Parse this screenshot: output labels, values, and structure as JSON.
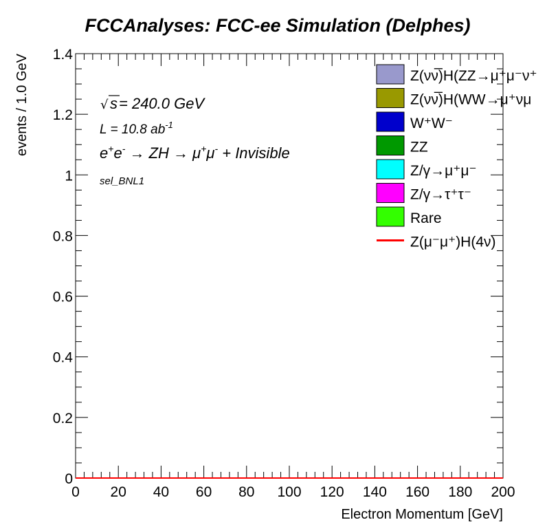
{
  "chart_data": {
    "type": "bar",
    "title": "FCCAnalyses: FCC-ee Simulation (Delphes)",
    "xlabel": "Electron Momentum [GeV]",
    "ylabel": "events / 1.0 GeV",
    "xlim": [
      0,
      200
    ],
    "ylim": [
      0,
      1.4
    ],
    "xticks": [
      "0",
      "20",
      "40",
      "60",
      "80",
      "100",
      "120",
      "140",
      "160",
      "180",
      "200"
    ],
    "yticks": [
      "0",
      "0.2",
      "0.4",
      "0.6",
      "0.8",
      "1",
      "1.2",
      "1.4"
    ],
    "grid": false,
    "legend_position": "top-right",
    "annotations": {
      "energy_prefix": "s",
      "energy_value": " = 240.0 GeV",
      "lumi_text": "L = 10.8 ab",
      "lumi_exp": "-1",
      "process_e1": "e",
      "process_e1_sup": "+",
      "process_e2": "e",
      "process_e2_sup": "-",
      "process_arrow1": " → ZH → ",
      "process_mu1": "μ",
      "process_mu1_sup": "+",
      "process_mu2": "μ",
      "process_mu2_sup": "-",
      "process_tail": " + Invisible",
      "selection": "sel_BNL1"
    },
    "series": [
      {
        "name": "Z(νν̅)H(ZZ→μ⁺μ⁻ν⁺ν⁻)",
        "label": "Z(νν̅)H(ZZ→μ⁺μ⁻ν⁺",
        "style": "fill",
        "color": "#9999cc",
        "values": [
          0
        ]
      },
      {
        "name": "Z(νν̅)H(WW→μ⁺νμ⁻ν)",
        "label": "Z(νν̅)H(WW→μ⁺νμ",
        "style": "fill",
        "color": "#999900",
        "values": [
          0
        ]
      },
      {
        "name": "W⁺W⁻",
        "label": "W⁺W⁻",
        "style": "fill",
        "color": "#0000cc",
        "values": [
          0
        ]
      },
      {
        "name": "ZZ",
        "label": "ZZ",
        "style": "fill",
        "color": "#009900",
        "values": [
          0
        ]
      },
      {
        "name": "Z/γ→μ⁺μ⁻",
        "label": "Z/γ→μ⁺μ⁻",
        "style": "fill",
        "color": "#00ffff",
        "values": [
          0
        ]
      },
      {
        "name": "Z/γ→τ⁺τ⁻",
        "label": "Z/γ→τ⁺τ⁻",
        "style": "fill",
        "color": "#ff00ff",
        "values": [
          0
        ]
      },
      {
        "name": "Rare",
        "label": "Rare",
        "style": "fill",
        "color": "#33ff00",
        "values": [
          0
        ]
      },
      {
        "name": "Z(μ⁻μ⁺)H(4ν)",
        "label": "Z(μ⁻μ⁺)H(4ν)",
        "style": "line",
        "color": "#ff0000",
        "values": [
          0
        ]
      }
    ]
  }
}
